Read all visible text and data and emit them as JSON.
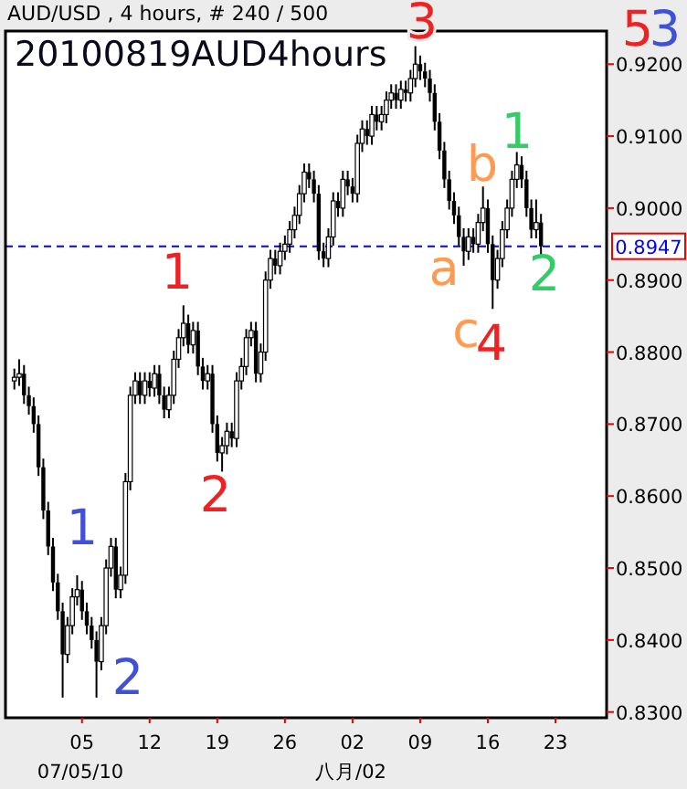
{
  "chart_data": {
    "type": "candlestick",
    "subtitle": "AUD/USD , 4 hours, # 240 / 500",
    "title": "20100819AUD4hours",
    "x": [
      "2010-06-28T00:00",
      "2010-06-28T12:00",
      "2010-06-29T00:00",
      "2010-06-29T12:00",
      "2010-06-30T00:00",
      "2010-06-30T12:00",
      "2010-07-01T00:00",
      "2010-07-01T12:00",
      "2010-07-02T00:00",
      "2010-07-02T12:00",
      "2010-07-03T00:00",
      "2010-07-03T12:00",
      "2010-07-04T00:00",
      "2010-07-04T12:00",
      "2010-07-05T00:00",
      "2010-07-05T12:00",
      "2010-07-06T00:00",
      "2010-07-06T12:00",
      "2010-07-07T00:00",
      "2010-07-07T12:00",
      "2010-07-08T00:00",
      "2010-07-08T12:00",
      "2010-07-09T00:00",
      "2010-07-09T12:00",
      "2010-07-10T00:00",
      "2010-07-10T12:00",
      "2010-07-11T00:00",
      "2010-07-11T12:00",
      "2010-07-12T00:00",
      "2010-07-12T12:00",
      "2010-07-13T00:00",
      "2010-07-13T12:00",
      "2010-07-14T00:00",
      "2010-07-14T12:00",
      "2010-07-15T00:00",
      "2010-07-15T12:00",
      "2010-07-16T00:00",
      "2010-07-16T12:00",
      "2010-07-17T00:00",
      "2010-07-17T12:00",
      "2010-07-18T00:00",
      "2010-07-18T12:00",
      "2010-07-19T00:00",
      "2010-07-19T12:00",
      "2010-07-20T00:00",
      "2010-07-20T12:00",
      "2010-07-21T00:00",
      "2010-07-21T12:00",
      "2010-07-22T00:00",
      "2010-07-22T12:00",
      "2010-07-23T00:00",
      "2010-07-23T12:00",
      "2010-07-24T00:00",
      "2010-07-24T12:00",
      "2010-07-25T00:00",
      "2010-07-25T12:00",
      "2010-07-26T00:00",
      "2010-07-26T12:00",
      "2010-07-27T00:00",
      "2010-07-27T12:00",
      "2010-07-28T00:00",
      "2010-07-28T12:00",
      "2010-07-29T00:00",
      "2010-07-29T12:00",
      "2010-07-30T00:00",
      "2010-07-30T12:00",
      "2010-07-31T00:00",
      "2010-07-31T12:00",
      "2010-08-01T00:00",
      "2010-08-01T12:00",
      "2010-08-02T00:00",
      "2010-08-02T12:00",
      "2010-08-03T00:00",
      "2010-08-03T12:00",
      "2010-08-04T00:00",
      "2010-08-04T12:00",
      "2010-08-05T00:00",
      "2010-08-05T12:00",
      "2010-08-06T00:00",
      "2010-08-06T12:00",
      "2010-08-07T00:00",
      "2010-08-07T12:00",
      "2010-08-08T00:00",
      "2010-08-08T12:00",
      "2010-08-09T00:00",
      "2010-08-09T12:00",
      "2010-08-10T00:00",
      "2010-08-10T12:00",
      "2010-08-11T00:00",
      "2010-08-11T12:00",
      "2010-08-12T00:00",
      "2010-08-12T12:00",
      "2010-08-13T00:00",
      "2010-08-13T12:00",
      "2010-08-14T00:00",
      "2010-08-14T12:00",
      "2010-08-15T00:00",
      "2010-08-15T12:00",
      "2010-08-16T00:00",
      "2010-08-16T12:00",
      "2010-08-17T00:00",
      "2010-08-17T12:00",
      "2010-08-18T00:00",
      "2010-08-18T12:00",
      "2010-08-19T00:00",
      "2010-08-19T12:00",
      "2010-08-20T00:00",
      "2010-08-20T12:00",
      "2010-08-21T00:00",
      "2010-08-21T12:00"
    ],
    "ohlc": [
      [
        0.876,
        0.8777,
        0.8748,
        0.8765
      ],
      [
        0.8765,
        0.879,
        0.8753,
        0.877
      ],
      [
        0.877,
        0.8782,
        0.8728,
        0.874
      ],
      [
        0.874,
        0.8752,
        0.8713,
        0.8725
      ],
      [
        0.8725,
        0.8737,
        0.8688,
        0.87
      ],
      [
        0.87,
        0.8712,
        0.8628,
        0.864
      ],
      [
        0.864,
        0.8652,
        0.8568,
        0.858
      ],
      [
        0.858,
        0.8592,
        0.8518,
        0.853
      ],
      [
        0.853,
        0.8542,
        0.8468,
        0.848
      ],
      [
        0.848,
        0.8492,
        0.8428,
        0.844
      ],
      [
        0.844,
        0.8452,
        0.832,
        0.838
      ],
      [
        0.838,
        0.8432,
        0.8368,
        0.842
      ],
      [
        0.842,
        0.8472,
        0.8408,
        0.846
      ],
      [
        0.846,
        0.849,
        0.8448,
        0.847
      ],
      [
        0.847,
        0.8482,
        0.8428,
        0.844
      ],
      [
        0.844,
        0.8452,
        0.8408,
        0.842
      ],
      [
        0.842,
        0.8432,
        0.8388,
        0.84
      ],
      [
        0.84,
        0.8412,
        0.832,
        0.837
      ],
      [
        0.837,
        0.8432,
        0.8358,
        0.842
      ],
      [
        0.842,
        0.8512,
        0.8408,
        0.85
      ],
      [
        0.85,
        0.8542,
        0.8488,
        0.853
      ],
      [
        0.853,
        0.8542,
        0.8458,
        0.847
      ],
      [
        0.847,
        0.8502,
        0.8458,
        0.849
      ],
      [
        0.849,
        0.8632,
        0.8478,
        0.862
      ],
      [
        0.862,
        0.8752,
        0.8608,
        0.874
      ],
      [
        0.874,
        0.8772,
        0.8728,
        0.876
      ],
      [
        0.876,
        0.8772,
        0.8728,
        0.874
      ],
      [
        0.874,
        0.8772,
        0.8728,
        0.876
      ],
      [
        0.876,
        0.8772,
        0.8738,
        0.875
      ],
      [
        0.875,
        0.8782,
        0.8738,
        0.877
      ],
      [
        0.877,
        0.8782,
        0.8728,
        0.874
      ],
      [
        0.874,
        0.8752,
        0.8708,
        0.872
      ],
      [
        0.872,
        0.8752,
        0.8708,
        0.874
      ],
      [
        0.874,
        0.8802,
        0.8728,
        0.879
      ],
      [
        0.879,
        0.8832,
        0.8778,
        0.882
      ],
      [
        0.882,
        0.8865,
        0.8808,
        0.884
      ],
      [
        0.884,
        0.8852,
        0.8798,
        0.881
      ],
      [
        0.881,
        0.8842,
        0.8798,
        0.883
      ],
      [
        0.883,
        0.8842,
        0.8768,
        0.878
      ],
      [
        0.878,
        0.8792,
        0.8748,
        0.876
      ],
      [
        0.876,
        0.8782,
        0.8748,
        0.877
      ],
      [
        0.877,
        0.8782,
        0.8688,
        0.87
      ],
      [
        0.87,
        0.8712,
        0.8648,
        0.866
      ],
      [
        0.866,
        0.8682,
        0.8634,
        0.867
      ],
      [
        0.867,
        0.8702,
        0.8658,
        0.869
      ],
      [
        0.869,
        0.8702,
        0.8668,
        0.868
      ],
      [
        0.868,
        0.8772,
        0.8668,
        0.876
      ],
      [
        0.876,
        0.8792,
        0.8748,
        0.878
      ],
      [
        0.878,
        0.8832,
        0.8768,
        0.882
      ],
      [
        0.882,
        0.8842,
        0.8808,
        0.883
      ],
      [
        0.883,
        0.8842,
        0.8758,
        0.877
      ],
      [
        0.877,
        0.8812,
        0.8758,
        0.88
      ],
      [
        0.88,
        0.8912,
        0.8788,
        0.89
      ],
      [
        0.89,
        0.8942,
        0.8888,
        0.893
      ],
      [
        0.893,
        0.8942,
        0.8908,
        0.892
      ],
      [
        0.892,
        0.8952,
        0.8908,
        0.894
      ],
      [
        0.894,
        0.8962,
        0.8928,
        0.895
      ],
      [
        0.895,
        0.8982,
        0.8938,
        0.897
      ],
      [
        0.897,
        0.9002,
        0.8958,
        0.899
      ],
      [
        0.899,
        0.9032,
        0.8978,
        0.902
      ],
      [
        0.902,
        0.9062,
        0.9008,
        0.905
      ],
      [
        0.905,
        0.9062,
        0.9028,
        0.904
      ],
      [
        0.904,
        0.9052,
        0.9008,
        0.902
      ],
      [
        0.902,
        0.9032,
        0.8928,
        0.894
      ],
      [
        0.894,
        0.8952,
        0.8918,
        0.893
      ],
      [
        0.893,
        0.8972,
        0.8918,
        0.896
      ],
      [
        0.896,
        0.9022,
        0.8948,
        0.901
      ],
      [
        0.901,
        0.9022,
        0.8988,
        0.9
      ],
      [
        0.9,
        0.9052,
        0.8988,
        0.904
      ],
      [
        0.904,
        0.9052,
        0.9018,
        0.903
      ],
      [
        0.903,
        0.9042,
        0.9008,
        0.902
      ],
      [
        0.902,
        0.9102,
        0.9008,
        0.909
      ],
      [
        0.909,
        0.9122,
        0.9078,
        0.911
      ],
      [
        0.911,
        0.9122,
        0.9088,
        0.91
      ],
      [
        0.91,
        0.9142,
        0.9088,
        0.913
      ],
      [
        0.913,
        0.9142,
        0.9108,
        0.912
      ],
      [
        0.912,
        0.9142,
        0.9108,
        0.913
      ],
      [
        0.913,
        0.9162,
        0.9118,
        0.915
      ],
      [
        0.915,
        0.9172,
        0.9138,
        0.916
      ],
      [
        0.916,
        0.9172,
        0.9138,
        0.915
      ],
      [
        0.915,
        0.9177,
        0.9138,
        0.9165
      ],
      [
        0.9165,
        0.9177,
        0.9148,
        0.916
      ],
      [
        0.916,
        0.9192,
        0.9148,
        0.918
      ],
      [
        0.918,
        0.9225,
        0.9168,
        0.92
      ],
      [
        0.92,
        0.9212,
        0.9178,
        0.919
      ],
      [
        0.919,
        0.9202,
        0.9168,
        0.918
      ],
      [
        0.918,
        0.9192,
        0.9148,
        0.916
      ],
      [
        0.916,
        0.9172,
        0.9108,
        0.912
      ],
      [
        0.912,
        0.9132,
        0.9068,
        0.908
      ],
      [
        0.908,
        0.9092,
        0.9028,
        0.904
      ],
      [
        0.904,
        0.9052,
        0.8998,
        0.901
      ],
      [
        0.901,
        0.9022,
        0.8978,
        0.899
      ],
      [
        0.899,
        0.9002,
        0.8948,
        0.896
      ],
      [
        0.896,
        0.8972,
        0.892,
        0.894
      ],
      [
        0.894,
        0.8972,
        0.8928,
        0.896
      ],
      [
        0.896,
        0.8972,
        0.8938,
        0.895
      ],
      [
        0.895,
        0.8992,
        0.8938,
        0.898
      ],
      [
        0.898,
        0.903,
        0.8968,
        0.9
      ],
      [
        0.9,
        0.9012,
        0.8938,
        0.895
      ],
      [
        0.895,
        0.8962,
        0.886,
        0.89
      ],
      [
        0.89,
        0.8942,
        0.8888,
        0.893
      ],
      [
        0.893,
        0.8982,
        0.8918,
        0.897
      ],
      [
        0.897,
        0.9012,
        0.8958,
        0.9
      ],
      [
        0.9,
        0.9052,
        0.8988,
        0.904
      ],
      [
        0.904,
        0.9078,
        0.9028,
        0.906
      ],
      [
        0.906,
        0.9072,
        0.9028,
        0.904
      ],
      [
        0.904,
        0.9052,
        0.8988,
        0.9
      ],
      [
        0.9,
        0.9012,
        0.8958,
        0.897
      ],
      [
        0.897,
        0.9012,
        0.8958,
        0.898
      ],
      [
        0.898,
        0.8992,
        0.8935,
        0.8947
      ]
    ],
    "xlim": [
      "2010-06-27T02:00",
      "2010-08-28T07:00"
    ],
    "xticks": [
      {
        "value": "2010-07-05",
        "label": "05"
      },
      {
        "value": "2010-07-12",
        "label": "12"
      },
      {
        "value": "2010-07-19",
        "label": "19"
      },
      {
        "value": "2010-07-26",
        "label": "26"
      },
      {
        "value": "2010-08-02",
        "label": "02"
      },
      {
        "value": "2010-08-09",
        "label": "09"
      },
      {
        "value": "2010-08-16",
        "label": "16"
      },
      {
        "value": "2010-08-23",
        "label": "23"
      }
    ],
    "ylim": [
      0.8292,
      0.9246
    ],
    "yticks": [
      {
        "value": 0.83,
        "label": "0.8300"
      },
      {
        "value": 0.84,
        "label": "0.8400"
      },
      {
        "value": 0.85,
        "label": "0.8500"
      },
      {
        "value": 0.86,
        "label": "0.8600"
      },
      {
        "value": 0.87,
        "label": "0.8700"
      },
      {
        "value": 0.88,
        "label": "0.8800"
      },
      {
        "value": 0.89,
        "label": "0.8900"
      },
      {
        "value": 0.9,
        "label": "0.9000"
      },
      {
        "value": 0.91,
        "label": "0.9100"
      },
      {
        "value": 0.92,
        "label": "0.9200"
      }
    ],
    "ref_lines": [
      {
        "axis": "y",
        "value": 0.8947,
        "label": "0.8947",
        "color": "#0000ff",
        "line_style": "dashed"
      }
    ],
    "grid": false,
    "annotations": [
      "1",
      "2",
      "1",
      "2",
      "3",
      "a",
      "b",
      "c",
      "4",
      "1",
      "2",
      "5",
      "3",
      "07/05/10",
      "八月/02"
    ]
  }
}
